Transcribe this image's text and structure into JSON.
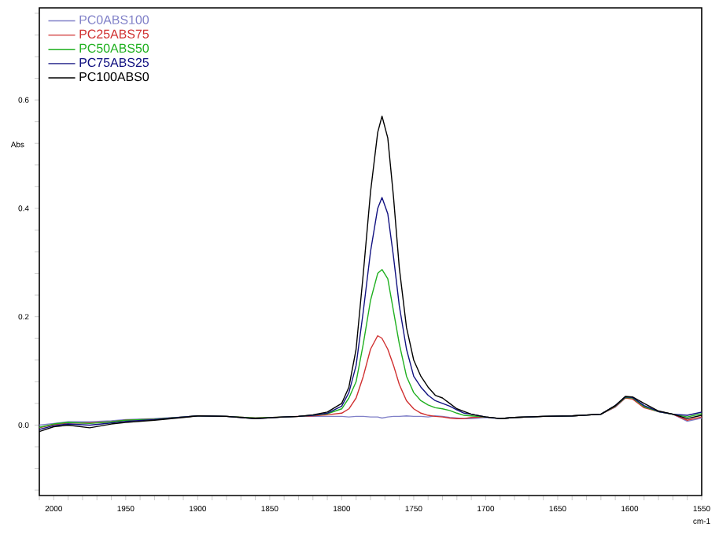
{
  "chart_data": {
    "type": "line",
    "xlabel": "cm-1",
    "ylabel": "Abs",
    "x": [
      2010,
      2000,
      1990,
      1975,
      1960,
      1950,
      1930,
      1910,
      1900,
      1880,
      1860,
      1840,
      1830,
      1820,
      1810,
      1800,
      1795,
      1790,
      1785,
      1780,
      1775,
      1772,
      1768,
      1764,
      1760,
      1755,
      1750,
      1745,
      1740,
      1735,
      1730,
      1725,
      1720,
      1715,
      1710,
      1700,
      1690,
      1680,
      1660,
      1640,
      1620,
      1610,
      1603,
      1598,
      1590,
      1580,
      1570,
      1560,
      1550
    ],
    "series": [
      {
        "name": "PC0ABS100",
        "color": "#8080c8",
        "values": [
          0.0,
          0.003,
          0.006,
          0.006,
          0.008,
          0.01,
          0.012,
          0.015,
          0.017,
          0.016,
          0.013,
          0.015,
          0.016,
          0.016,
          0.016,
          0.016,
          0.015,
          0.016,
          0.016,
          0.015,
          0.015,
          0.013,
          0.015,
          0.016,
          0.016,
          0.017,
          0.016,
          0.016,
          0.015,
          0.017,
          0.016,
          0.014,
          0.013,
          0.012,
          0.012,
          0.014,
          0.012,
          0.014,
          0.016,
          0.017,
          0.02,
          0.033,
          0.05,
          0.05,
          0.035,
          0.025,
          0.02,
          0.007,
          0.013
        ]
      },
      {
        "name": "PC25ABS75",
        "color": "#d03030",
        "values": [
          -0.005,
          0.001,
          0.004,
          0.004,
          0.006,
          0.009,
          0.011,
          0.015,
          0.017,
          0.016,
          0.013,
          0.015,
          0.016,
          0.017,
          0.019,
          0.022,
          0.03,
          0.05,
          0.09,
          0.14,
          0.165,
          0.16,
          0.14,
          0.11,
          0.075,
          0.045,
          0.03,
          0.022,
          0.018,
          0.016,
          0.015,
          0.013,
          0.012,
          0.012,
          0.014,
          0.015,
          0.012,
          0.014,
          0.016,
          0.017,
          0.02,
          0.034,
          0.05,
          0.048,
          0.032,
          0.025,
          0.02,
          0.009,
          0.015
        ]
      },
      {
        "name": "PC50ABS50",
        "color": "#20b020",
        "values": [
          -0.004,
          0.002,
          0.005,
          0.003,
          0.006,
          0.009,
          0.011,
          0.015,
          0.017,
          0.016,
          0.013,
          0.015,
          0.016,
          0.018,
          0.021,
          0.03,
          0.05,
          0.08,
          0.15,
          0.23,
          0.28,
          0.287,
          0.27,
          0.21,
          0.15,
          0.09,
          0.06,
          0.045,
          0.037,
          0.032,
          0.03,
          0.027,
          0.022,
          0.018,
          0.017,
          0.015,
          0.012,
          0.014,
          0.016,
          0.017,
          0.02,
          0.035,
          0.051,
          0.05,
          0.034,
          0.025,
          0.02,
          0.015,
          0.021
        ]
      },
      {
        "name": "PC75ABS25",
        "color": "#101080",
        "values": [
          -0.008,
          -0.001,
          0.002,
          0.0,
          0.004,
          0.007,
          0.01,
          0.015,
          0.017,
          0.016,
          0.012,
          0.015,
          0.016,
          0.018,
          0.022,
          0.035,
          0.06,
          0.11,
          0.21,
          0.32,
          0.4,
          0.42,
          0.39,
          0.31,
          0.22,
          0.14,
          0.09,
          0.07,
          0.055,
          0.045,
          0.04,
          0.035,
          0.028,
          0.022,
          0.02,
          0.015,
          0.012,
          0.014,
          0.016,
          0.017,
          0.02,
          0.036,
          0.052,
          0.051,
          0.036,
          0.025,
          0.02,
          0.018,
          0.024
        ]
      },
      {
        "name": "PC100ABS0",
        "color": "#000000",
        "values": [
          -0.012,
          -0.003,
          0.0,
          -0.005,
          0.002,
          0.005,
          0.009,
          0.014,
          0.017,
          0.016,
          0.012,
          0.015,
          0.016,
          0.019,
          0.024,
          0.04,
          0.07,
          0.14,
          0.28,
          0.43,
          0.54,
          0.57,
          0.53,
          0.42,
          0.29,
          0.18,
          0.12,
          0.09,
          0.07,
          0.055,
          0.05,
          0.04,
          0.03,
          0.025,
          0.02,
          0.015,
          0.012,
          0.014,
          0.016,
          0.017,
          0.02,
          0.036,
          0.053,
          0.052,
          0.04,
          0.026,
          0.02,
          0.012,
          0.018
        ]
      }
    ],
    "xlim": [
      2010,
      1550
    ],
    "xticks": [
      {
        "value": 2010,
        "label": null
      },
      2000,
      {
        "value": 1990,
        "label": null
      },
      {
        "value": 1980,
        "label": null
      },
      {
        "value": 1970,
        "label": null
      },
      {
        "value": 1960,
        "label": null
      },
      1950,
      {
        "value": 1940,
        "label": null
      },
      {
        "value": 1930,
        "label": null
      },
      {
        "value": 1920,
        "label": null
      },
      {
        "value": 1910,
        "label": null
      },
      1900,
      {
        "value": 1890,
        "label": null
      },
      {
        "value": 1880,
        "label": null
      },
      {
        "value": 1870,
        "label": null
      },
      {
        "value": 1860,
        "label": null
      },
      1850,
      {
        "value": 1840,
        "label": null
      },
      {
        "value": 1830,
        "label": null
      },
      {
        "value": 1820,
        "label": null
      },
      {
        "value": 1810,
        "label": null
      },
      1800,
      {
        "value": 1790,
        "label": null
      },
      {
        "value": 1780,
        "label": null
      },
      {
        "value": 1770,
        "label": null
      },
      {
        "value": 1760,
        "label": null
      },
      1750,
      {
        "value": 1740,
        "label": null
      },
      {
        "value": 1730,
        "label": null
      },
      {
        "value": 1720,
        "label": null
      },
      {
        "value": 1710,
        "label": null
      },
      1700,
      {
        "value": 1690,
        "label": null
      },
      {
        "value": 1680,
        "label": null
      },
      {
        "value": 1670,
        "label": null
      },
      {
        "value": 1660,
        "label": null
      },
      1650,
      {
        "value": 1640,
        "label": null
      },
      {
        "value": 1630,
        "label": null
      },
      {
        "value": 1620,
        "label": null
      },
      {
        "value": 1610,
        "label": null
      },
      1600,
      {
        "value": 1590,
        "label": null
      },
      {
        "value": 1580,
        "label": null
      },
      {
        "value": 1570,
        "label": null
      },
      {
        "value": 1560,
        "label": null
      },
      1550
    ],
    "ylim": [
      -0.13,
      0.77
    ],
    "yticks": [
      {
        "value": -0.12,
        "label": null
      },
      {
        "value": -0.08,
        "label": null
      },
      {
        "value": -0.04,
        "label": null
      },
      {
        "value": 0,
        "label": "0.0"
      },
      {
        "value": 0.04,
        "label": null
      },
      {
        "value": 0.08,
        "label": null
      },
      {
        "value": 0.12,
        "label": null
      },
      {
        "value": 0.16,
        "label": null
      },
      0.2,
      {
        "value": 0.24,
        "label": null
      },
      {
        "value": 0.28,
        "label": null
      },
      {
        "value": 0.32,
        "label": null
      },
      {
        "value": 0.36,
        "label": null
      },
      0.4,
      {
        "value": 0.44,
        "label": null
      },
      {
        "value": 0.48,
        "label": null
      },
      {
        "value": 0.52,
        "label": null
      },
      {
        "value": 0.56,
        "label": null
      },
      0.6,
      {
        "value": 0.64,
        "label": null
      },
      {
        "value": 0.68,
        "label": null
      },
      {
        "value": 0.72,
        "label": null
      },
      {
        "value": 0.76,
        "label": null
      }
    ],
    "legend": "top left",
    "marker": "none",
    "line_style": "solid",
    "grid": false
  }
}
